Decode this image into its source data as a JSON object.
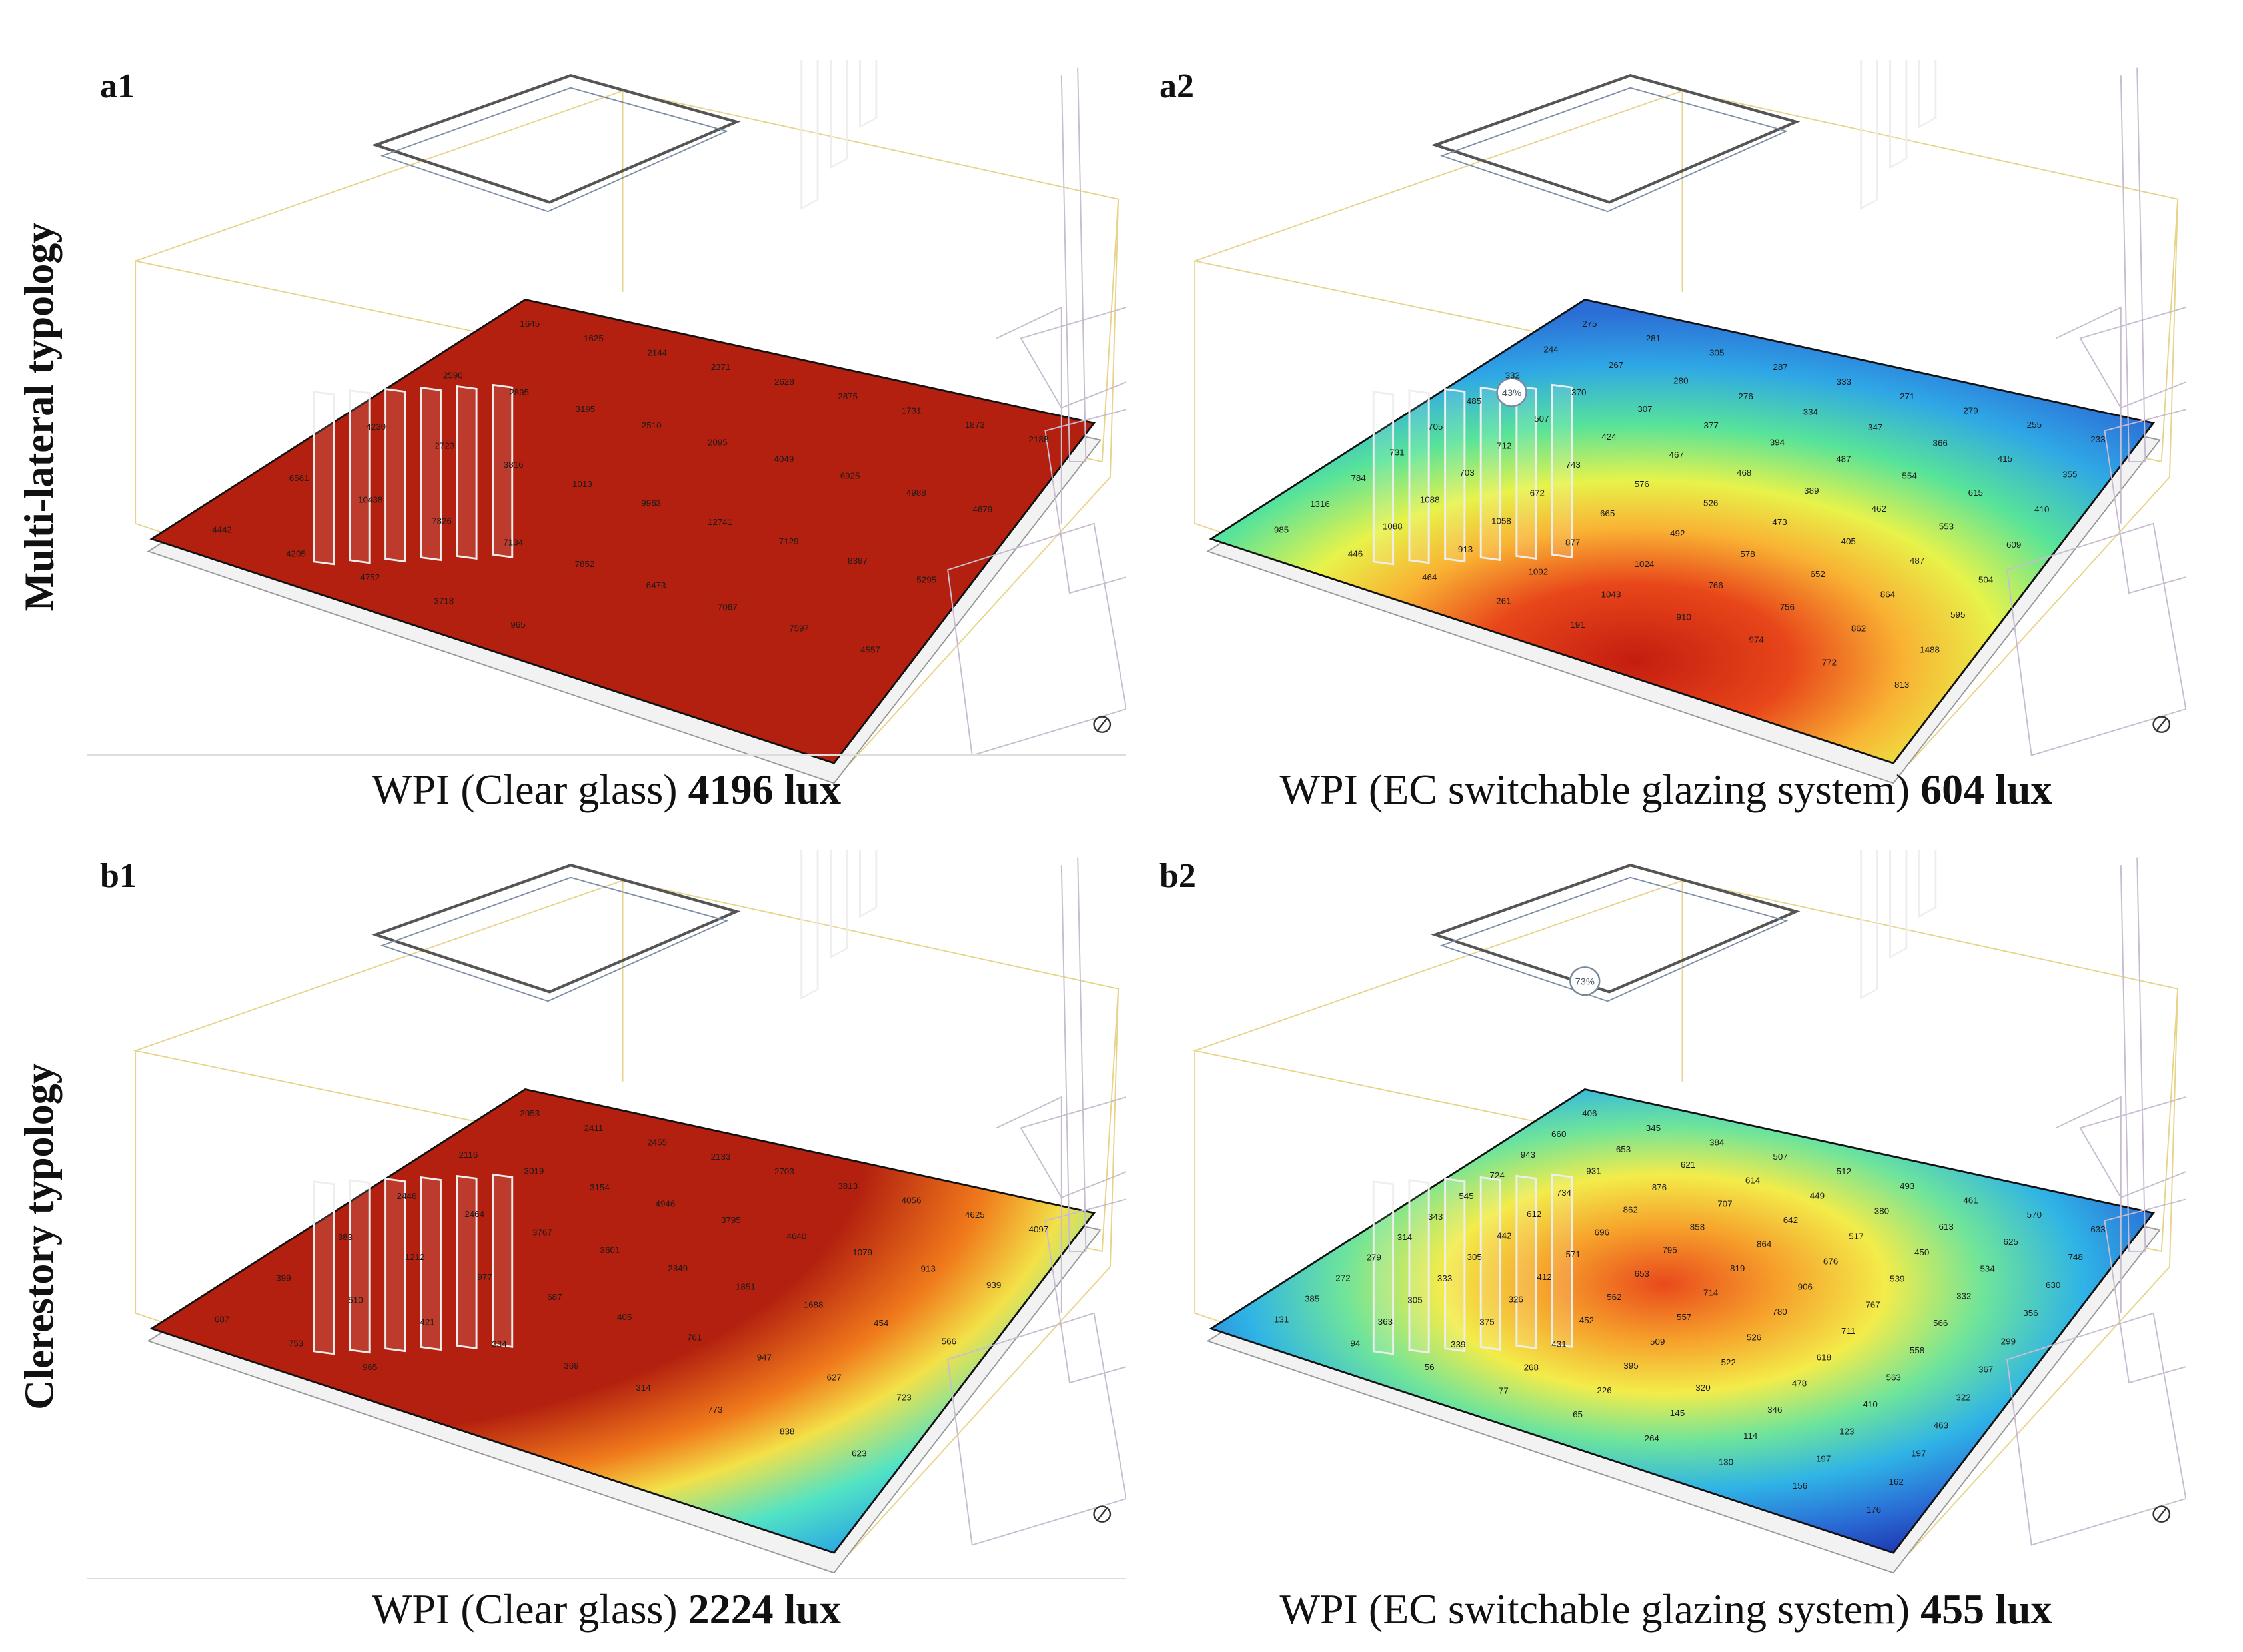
{
  "rows": [
    {
      "label": "Multi-lateral typology"
    },
    {
      "label": "Clerestory typology"
    }
  ],
  "panels": [
    {
      "id": "a1",
      "caption_text": "WPI (Clear glass)",
      "caption_value": "4196 lux",
      "floor_numbers": [
        "1645",
        "1625",
        "2144",
        "2371",
        "2628",
        "2875",
        "1731",
        "1873",
        "2188",
        "2590",
        "2895",
        "3195",
        "2510",
        "2095",
        "4049",
        "6925",
        "4988",
        "4679",
        "4230",
        "2723",
        "3816",
        "1013",
        "9963",
        "12741",
        "7129",
        "8397",
        "5295",
        "6561",
        "10438",
        "7826",
        "7134",
        "7852",
        "6473",
        "7067",
        "7597",
        "4557",
        "4442",
        "4205",
        "4752",
        "3718",
        "965"
      ]
    },
    {
      "id": "a2",
      "caption_text": "WPI (EC switchable glazing system)",
      "caption_value": "604 lux",
      "marker_label": "43%",
      "floor_numbers": [
        "275",
        "281",
        "305",
        "287",
        "333",
        "271",
        "279",
        "255",
        "233",
        "244",
        "267",
        "280",
        "276",
        "334",
        "347",
        "366",
        "415",
        "355",
        "332",
        "370",
        "307",
        "377",
        "394",
        "487",
        "554",
        "615",
        "410",
        "485",
        "507",
        "424",
        "467",
        "468",
        "389",
        "462",
        "553",
        "609",
        "705",
        "712",
        "743",
        "576",
        "526",
        "473",
        "405",
        "487",
        "504",
        "731",
        "703",
        "672",
        "665",
        "492",
        "578",
        "652",
        "864",
        "595",
        "784",
        "1088",
        "1058",
        "877",
        "1024",
        "766",
        "756",
        "862",
        "1488",
        "1316",
        "1088",
        "913",
        "1092",
        "1043",
        "910",
        "974",
        "772",
        "813",
        "985",
        "446",
        "464",
        "261",
        "191"
      ]
    },
    {
      "id": "b1",
      "caption_text": "WPI (Clear glass)",
      "caption_value": "2224 lux",
      "floor_numbers": [
        "2953",
        "2411",
        "2455",
        "2133",
        "2703",
        "3813",
        "4056",
        "4625",
        "4097",
        "2116",
        "3019",
        "3154",
        "4946",
        "3795",
        "4640",
        "1079",
        "913",
        "939",
        "2446",
        "2464",
        "3767",
        "3601",
        "2349",
        "1851",
        "1688",
        "454",
        "566",
        "383",
        "1212",
        "977",
        "687",
        "405",
        "761",
        "947",
        "627",
        "723",
        "399",
        "510",
        "421",
        "334",
        "369",
        "314",
        "773",
        "838",
        "623",
        "687",
        "753",
        "965"
      ]
    },
    {
      "id": "b2",
      "caption_text": "WPI (EC switchable glazing system)",
      "caption_value": "455 lux",
      "marker_label": "73%",
      "floor_numbers": [
        "406",
        "345",
        "384",
        "507",
        "512",
        "493",
        "461",
        "570",
        "633",
        "660",
        "653",
        "621",
        "614",
        "449",
        "380",
        "613",
        "625",
        "748",
        "943",
        "931",
        "876",
        "707",
        "642",
        "517",
        "450",
        "534",
        "630",
        "724",
        "734",
        "862",
        "858",
        "864",
        "676",
        "539",
        "332",
        "356",
        "545",
        "612",
        "696",
        "795",
        "819",
        "906",
        "767",
        "566",
        "299",
        "343",
        "442",
        "571",
        "653",
        "714",
        "780",
        "711",
        "558",
        "367",
        "314",
        "305",
        "412",
        "562",
        "557",
        "526",
        "618",
        "563",
        "322",
        "279",
        "333",
        "326",
        "452",
        "509",
        "522",
        "478",
        "410",
        "463",
        "272",
        "305",
        "375",
        "431",
        "395",
        "320",
        "346",
        "123",
        "197",
        "385",
        "363",
        "339",
        "268",
        "226",
        "145",
        "114",
        "197",
        "162",
        "131",
        "94",
        "56",
        "77",
        "65",
        "264",
        "130",
        "156",
        "176"
      ]
    }
  ]
}
